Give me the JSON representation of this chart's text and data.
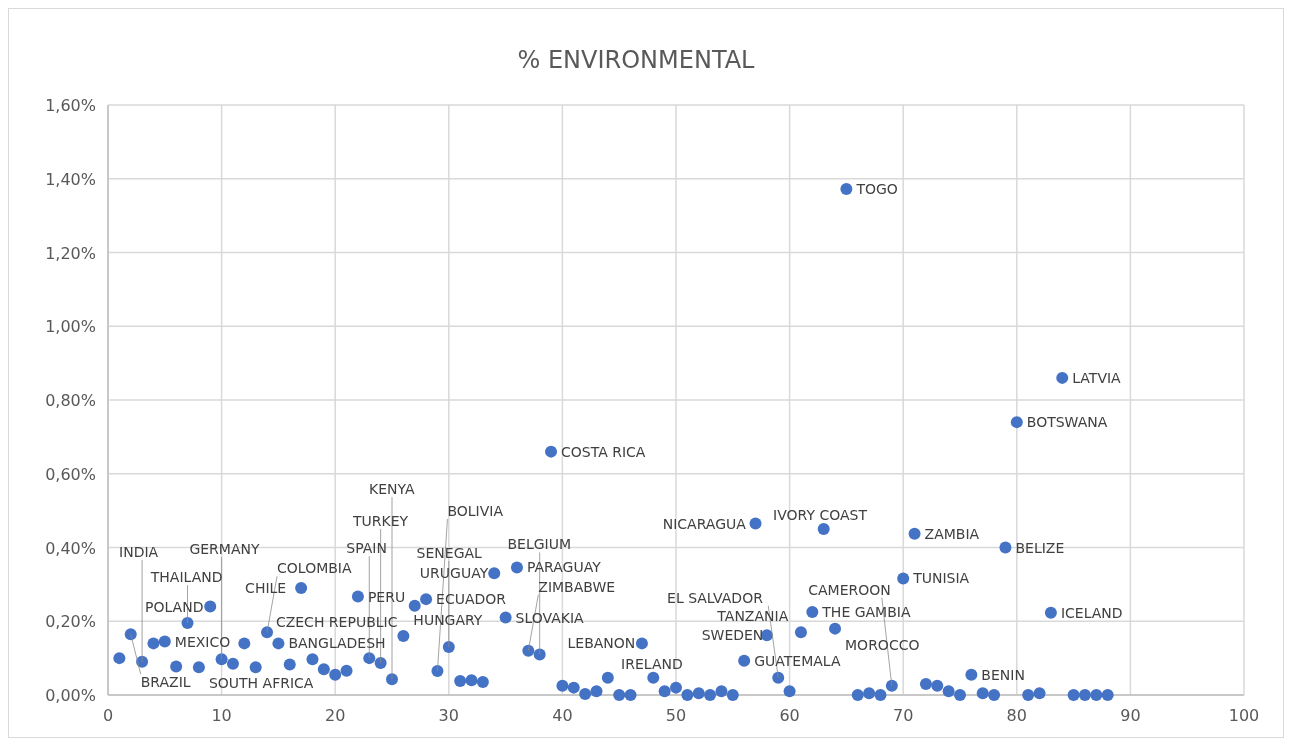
{
  "chart_data": {
    "type": "scatter",
    "title": "% ENVIRONMENTAL",
    "x": [
      1,
      2,
      3,
      4,
      5,
      6,
      7,
      8,
      9,
      10,
      11,
      12,
      13,
      14,
      15,
      16,
      17,
      18,
      19,
      20,
      21,
      22,
      23,
      24,
      25,
      26,
      27,
      28,
      29,
      30,
      31,
      32,
      33,
      34,
      35,
      36,
      37,
      38,
      39,
      40,
      41,
      42,
      43,
      44,
      45,
      46,
      47,
      48,
      49,
      50,
      51,
      52,
      53,
      54,
      55,
      56,
      57,
      58,
      59,
      60,
      61,
      62,
      63,
      64,
      65,
      66,
      67,
      68,
      69,
      70,
      71,
      72,
      73,
      74,
      75,
      76,
      77,
      78,
      79,
      80,
      81,
      82,
      83,
      84,
      85,
      86,
      87,
      88
    ],
    "series": [
      {
        "color": "#4472c4",
        "values": [
          0.1,
          0.165,
          0.09,
          0.14,
          0.145,
          0.077,
          0.195,
          0.075,
          0.24,
          0.097,
          0.085,
          0.14,
          0.075,
          0.17,
          0.14,
          0.083,
          0.29,
          0.097,
          0.07,
          0.055,
          0.066,
          0.267,
          0.1,
          0.087,
          0.043,
          0.16,
          0.242,
          0.26,
          0.065,
          0.13,
          0.038,
          0.04,
          0.035,
          0.33,
          0.21,
          0.346,
          0.12,
          0.11,
          0.66,
          0.025,
          0.02,
          0.003,
          0.01,
          0.047,
          0,
          0,
          0.14,
          0.047,
          0.01,
          0.02,
          0,
          0.005,
          0,
          0.01,
          0,
          0.093,
          0.465,
          0.162,
          0.047,
          0.01,
          0.17,
          0.225,
          0.45,
          0.18,
          1.372,
          0,
          0.005,
          0,
          0.025,
          0.316,
          0.437,
          0.03,
          0.025,
          0.01,
          0,
          0.055,
          0.005,
          0,
          0.4,
          0.74,
          0,
          0.005,
          0.223,
          0.86,
          0,
          0,
          0,
          0
        ]
      }
    ],
    "xlim": [
      0,
      100
    ],
    "xticks": [
      0,
      10,
      20,
      30,
      40,
      50,
      60,
      70,
      80,
      90,
      100
    ],
    "ylim": [
      0,
      1.6
    ],
    "yticks": [
      {
        "value": 0,
        "label": "0,00%"
      },
      {
        "value": 0.2,
        "label": "0,20%"
      },
      {
        "value": 0.4,
        "label": "0,40%"
      },
      {
        "value": 0.6,
        "label": "0,60%"
      },
      {
        "value": 0.8,
        "label": "0,80%"
      },
      {
        "value": 1.0,
        "label": "1,00%"
      },
      {
        "value": 1.2,
        "label": "1,20%"
      },
      {
        "value": 1.4,
        "label": "1,40%"
      },
      {
        "value": 1.6,
        "label": "1,60%"
      }
    ],
    "grid": true,
    "marker": "circle",
    "annotations": [
      {
        "text": "TOGO",
        "x": 65,
        "y": 1.372
      },
      {
        "text": "LATVIA",
        "x": 84,
        "y": 0.86
      },
      {
        "text": "BOTSWANA",
        "x": 80,
        "y": 0.74
      },
      {
        "text": "COSTA RICA",
        "x": 39,
        "y": 0.66
      },
      {
        "text": "NICARAGUA",
        "x": 57,
        "y": 0.465
      },
      {
        "text": "IVORY COAST",
        "x": 63,
        "y": 0.45
      },
      {
        "text": "ZAMBIA",
        "x": 71,
        "y": 0.437
      },
      {
        "text": "BELIZE",
        "x": 79,
        "y": 0.4
      },
      {
        "text": "TUNISIA",
        "x": 70,
        "y": 0.316
      },
      {
        "text": "ICELAND",
        "x": 83,
        "y": 0.223
      },
      {
        "text": "THE GAMBIA",
        "x": 62,
        "y": 0.225
      },
      {
        "text": "MOROCCO",
        "x": 64,
        "y": 0.18
      },
      {
        "text": "TANZANIA",
        "x": 61,
        "y": 0.17
      },
      {
        "text": "SWEDEN",
        "x": 58,
        "y": 0.162
      },
      {
        "text": "LEBANON",
        "x": 47,
        "y": 0.14
      },
      {
        "text": "GUATEMALA",
        "x": 56,
        "y": 0.093
      },
      {
        "text": "EL SALVADOR",
        "x": 59,
        "y": 0.047
      },
      {
        "text": "CAMEROON",
        "x": 69,
        "y": 0.025
      },
      {
        "text": "BENIN",
        "x": 76,
        "y": 0.055
      },
      {
        "text": "IRELAND",
        "x": 48,
        "y": 0.047
      },
      {
        "text": "PARAGUAY",
        "x": 36,
        "y": 0.346
      },
      {
        "text": "URUGUAY",
        "x": 34,
        "y": 0.33
      },
      {
        "text": "CHILE",
        "x": 17,
        "y": 0.29
      },
      {
        "text": "PERU",
        "x": 22,
        "y": 0.267
      },
      {
        "text": "ECUADOR",
        "x": 28,
        "y": 0.26
      },
      {
        "text": "CZECH REPUBLIC",
        "x": 27,
        "y": 0.242
      },
      {
        "text": "SLOVAKIA",
        "x": 35,
        "y": 0.21
      },
      {
        "text": "POLAND",
        "x": 9,
        "y": 0.24
      },
      {
        "text": "THAILAND",
        "x": 7,
        "y": 0.195
      },
      {
        "text": "BRAZIL",
        "x": 2,
        "y": 0.165
      },
      {
        "text": "COLOMBIA",
        "x": 14,
        "y": 0.17
      },
      {
        "text": "HUNGARY",
        "x": 26,
        "y": 0.16
      },
      {
        "text": "SENEGAL",
        "x": 30,
        "y": 0.13
      },
      {
        "text": "ZIMBABWE",
        "x": 37,
        "y": 0.12
      },
      {
        "text": "BELGIUM",
        "x": 38,
        "y": 0.11
      },
      {
        "text": "BANGLADESH",
        "x": 15,
        "y": 0.14
      },
      {
        "text": "MEXICO",
        "x": 5,
        "y": 0.145
      },
      {
        "text": "INDIA",
        "x": 3,
        "y": 0.09
      },
      {
        "text": "GERMANY",
        "x": 10,
        "y": 0.097
      },
      {
        "text": "SPAIN",
        "x": 23,
        "y": 0.1
      },
      {
        "text": "TURKEY",
        "x": 24,
        "y": 0.087
      },
      {
        "text": "SOUTH AFRICA",
        "x": 8,
        "y": 0.075
      },
      {
        "text": "KENYA",
        "x": 25,
        "y": 0.043
      },
      {
        "text": "BOLIVIA",
        "x": 29,
        "y": 0.065
      }
    ]
  }
}
